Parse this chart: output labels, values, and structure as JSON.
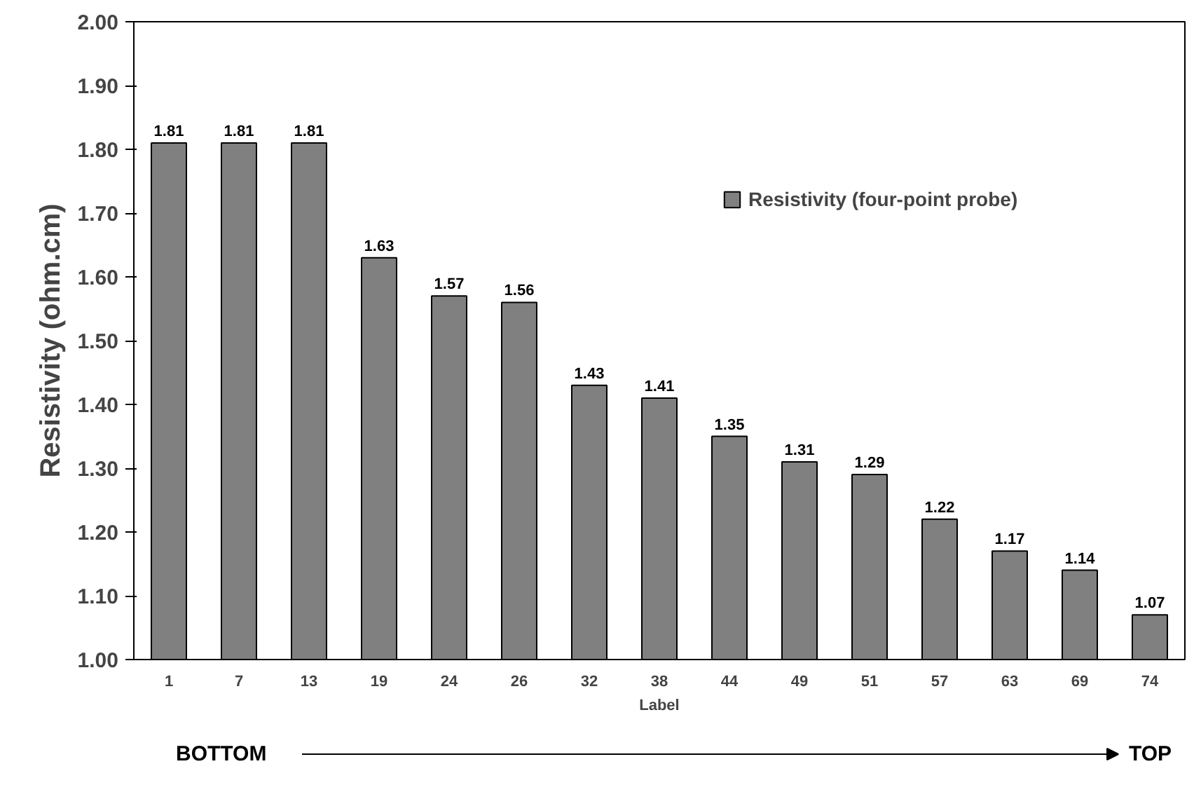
{
  "chart_data": {
    "type": "bar",
    "xlabel": "Label",
    "ylabel": "Resistivity (ohm.cm)",
    "categories": [
      "1",
      "7",
      "13",
      "19",
      "24",
      "26",
      "32",
      "38",
      "44",
      "49",
      "51",
      "57",
      "63",
      "69",
      "74"
    ],
    "series": [
      {
        "name": "Resistivity (four-point probe)",
        "color": "#808080",
        "values": [
          1.81,
          1.81,
          1.81,
          1.63,
          1.57,
          1.56,
          1.43,
          1.41,
          1.35,
          1.31,
          1.29,
          1.22,
          1.17,
          1.14,
          1.07
        ]
      }
    ],
    "data_labels": true,
    "ylim": [
      1.0,
      2.0
    ],
    "yticks": [
      {
        "value": 1.0,
        "label": "1.00"
      },
      {
        "value": 1.1,
        "label": "1.10"
      },
      {
        "value": 1.2,
        "label": "1.20"
      },
      {
        "value": 1.3,
        "label": "1.30"
      },
      {
        "value": 1.4,
        "label": "1.40"
      },
      {
        "value": 1.5,
        "label": "1.50"
      },
      {
        "value": 1.6,
        "label": "1.60"
      },
      {
        "value": 1.7,
        "label": "1.70"
      },
      {
        "value": 1.8,
        "label": "1.80"
      },
      {
        "value": 1.9,
        "label": "1.90"
      },
      {
        "value": 2.0,
        "label": "2.00"
      }
    ],
    "grid": false,
    "legend": "top right",
    "annotations": [
      "BOTTOM",
      "TOP"
    ]
  }
}
